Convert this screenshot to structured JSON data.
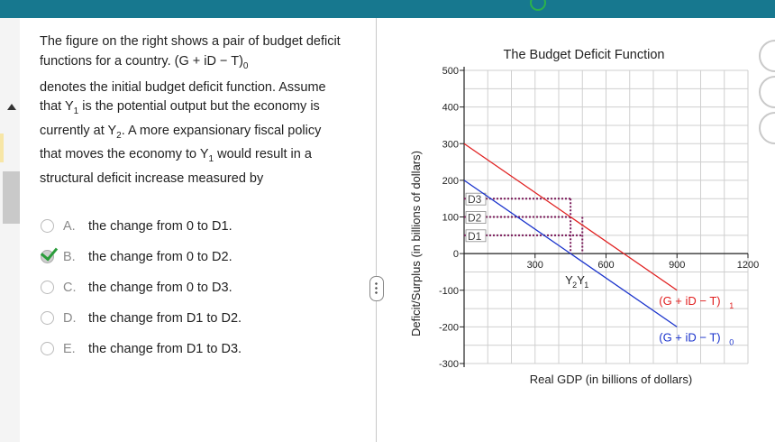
{
  "question": {
    "line1": "The figure on the right shows a pair of budget deficit functions for a country. (G + iD − T)",
    "line1_sub": "0",
    "line2": "denotes the initial  budget deficit function. Assume that Y",
    "line2_sub": "1",
    "line2_after": " is the potential output but the economy is currently at Y",
    "line2_sub2": "2",
    "line2_end": ". A more expansionary fiscal policy that moves the economy to Y",
    "line2_sub3": "1",
    "line2_tail": " would result in a structural deficit increase measured by"
  },
  "options": [
    {
      "letter": "A.",
      "text": "the change from 0 to D1."
    },
    {
      "letter": "B.",
      "text": "the change from 0 to D2.",
      "selected": true
    },
    {
      "letter": "C.",
      "text": "the change from 0 to D3."
    },
    {
      "letter": "D.",
      "text": "the change from D1 to D2."
    },
    {
      "letter": "E.",
      "text": "the change from D1 to D3."
    }
  ],
  "chart_data": {
    "type": "line",
    "title": "The Budget Deficit Function",
    "xlabel": "Real GDP (in billions of dollars)",
    "ylabel": "Deficit/Surplus (in billions of dollars)",
    "xlim": [
      0,
      1200
    ],
    "ylim": [
      -300,
      500
    ],
    "x_ticks": [
      300,
      600,
      900,
      1200
    ],
    "y_ticks": [
      500,
      400,
      300,
      200,
      100,
      0,
      -100,
      -200,
      -300
    ],
    "grid": true,
    "series": [
      {
        "name": "(G + iD − T)1",
        "color": "#e02020",
        "x": [
          0,
          900
        ],
        "y": [
          300,
          -100
        ]
      },
      {
        "name": "(G + iD − T)0",
        "color": "#1a33cc",
        "x": [
          0,
          900
        ],
        "y": [
          200,
          -200
        ]
      }
    ],
    "markers": [
      {
        "label": "D3",
        "y": 150
      },
      {
        "label": "D2",
        "y": 100
      },
      {
        "label": "D1",
        "y": 50
      }
    ],
    "x_markers": [
      {
        "label": "Y2",
        "x": 450
      },
      {
        "label": "Y1",
        "x": 500
      }
    ],
    "colors": {
      "red": "#e02020",
      "blue": "#1a33cc",
      "dotted": "#7a1a5a"
    }
  }
}
